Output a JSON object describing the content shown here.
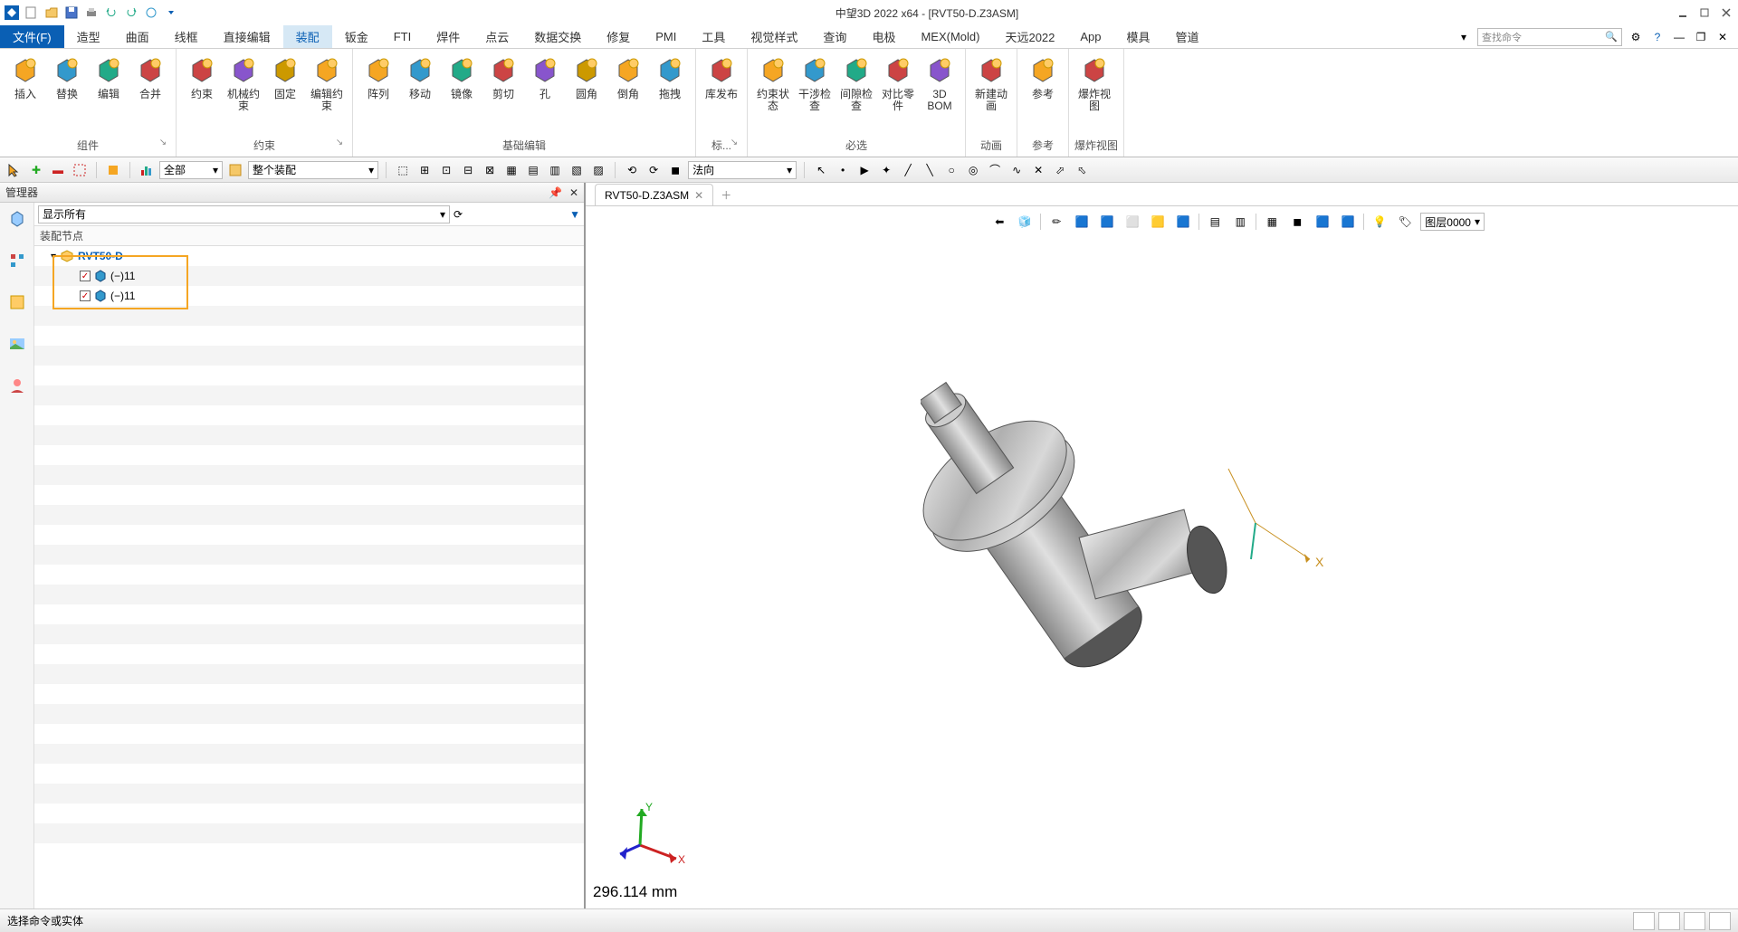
{
  "app": {
    "title": "中望3D 2022 x64 - [RVT50-D.Z3ASM]"
  },
  "menu": {
    "file": "文件(F)",
    "tabs": [
      "造型",
      "曲面",
      "线框",
      "直接编辑",
      "装配",
      "钣金",
      "FTI",
      "焊件",
      "点云",
      "数据交换",
      "修复",
      "PMI",
      "工具",
      "视觉样式",
      "查询",
      "电极",
      "MEX(Mold)",
      "天远2022",
      "App",
      "模具",
      "管道"
    ],
    "active_index": 4,
    "search_placeholder": "查找命令"
  },
  "ribbon": {
    "groups": [
      {
        "label": "组件",
        "launcher": true,
        "tools": [
          "插入",
          "替换",
          "编辑",
          "合并"
        ]
      },
      {
        "label": "约束",
        "launcher": true,
        "tools": [
          "约束",
          "机械约束",
          "固定",
          "编辑约束"
        ]
      },
      {
        "label": "基础编辑",
        "launcher": false,
        "tools": [
          "阵列",
          "移动",
          "镜像",
          "剪切",
          "孔",
          "圆角",
          "倒角",
          "拖拽"
        ]
      },
      {
        "label": "标...",
        "launcher": true,
        "tools": [
          "库发布"
        ]
      },
      {
        "label": "必选",
        "launcher": false,
        "tools": [
          "约束状态",
          "干涉检查",
          "间隙检查",
          "对比零件",
          "3D BOM"
        ]
      },
      {
        "label": "动画",
        "launcher": false,
        "tools": [
          "新建动画"
        ]
      },
      {
        "label": "参考",
        "launcher": false,
        "tools": [
          "参考"
        ]
      },
      {
        "label": "爆炸视图",
        "launcher": false,
        "tools": [
          "爆炸视图"
        ]
      }
    ]
  },
  "quickbar": {
    "combo1": "全部",
    "combo2": "整个装配",
    "combo3": "法向"
  },
  "manager": {
    "title": "管理器",
    "filter": "显示所有",
    "header": "装配节点",
    "root": "RVT50-D",
    "children": [
      "(−)11",
      "(−)11"
    ]
  },
  "viewport": {
    "tab": "RVT50-D.Z3ASM",
    "layer": "图层0000",
    "measure": "296.114 mm"
  },
  "status": {
    "text": "选择命令或实体"
  },
  "colors": {
    "accent": "#0a5fb4",
    "highlight": "#f5a623"
  }
}
